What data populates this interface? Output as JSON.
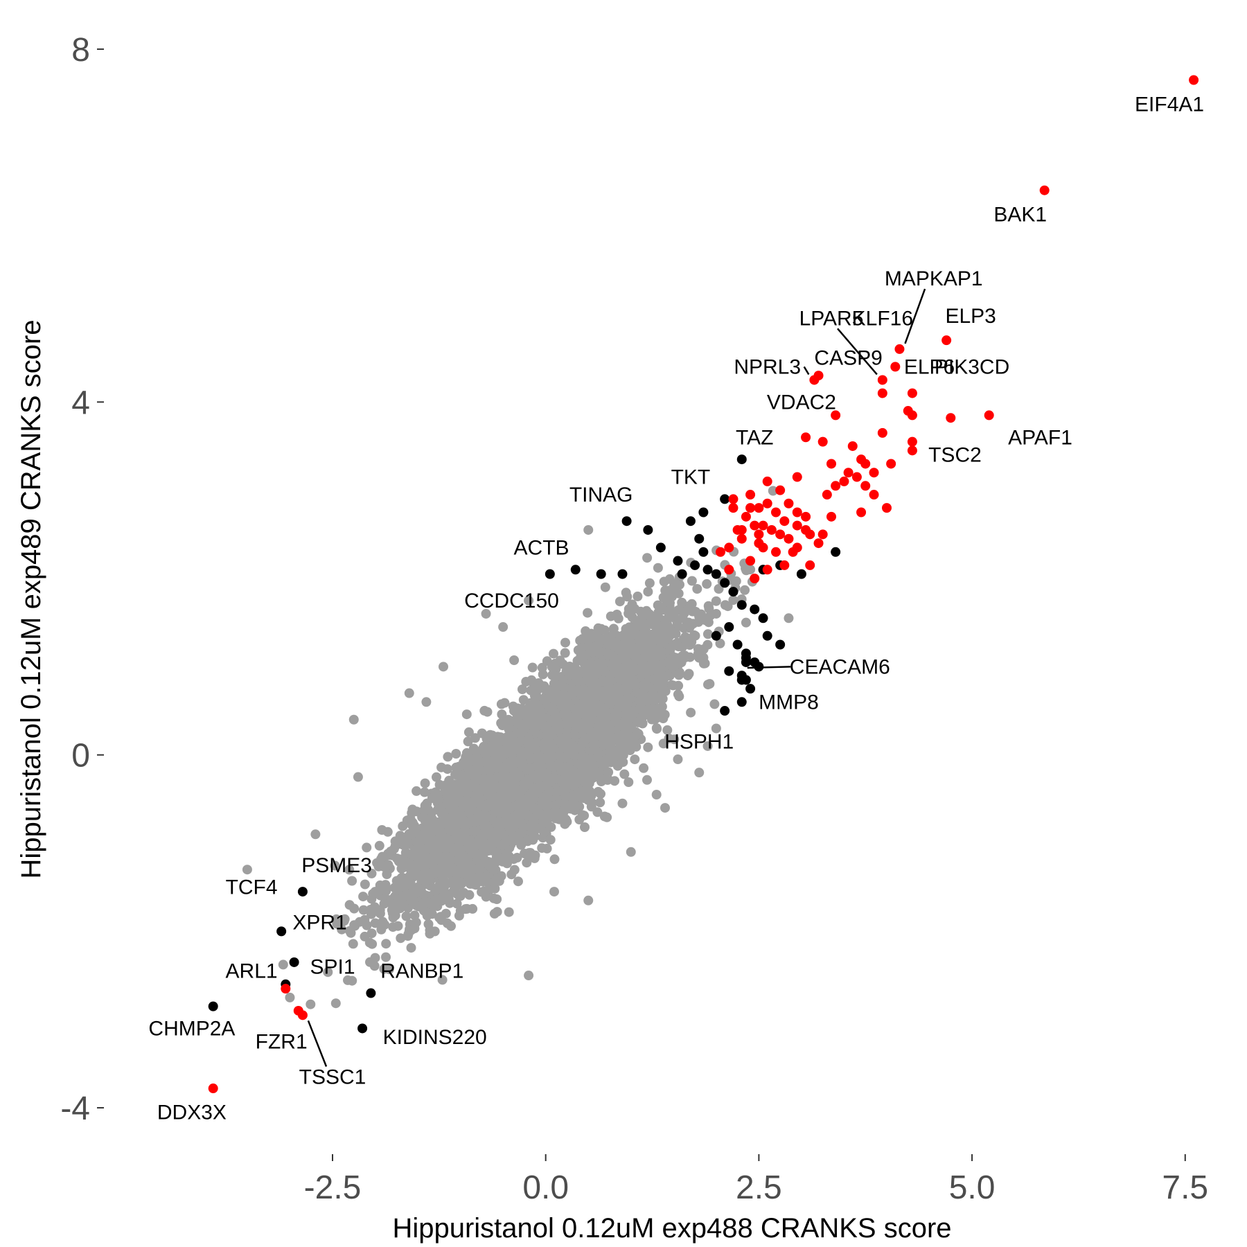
{
  "chart_data": {
    "type": "scatter",
    "xlabel": "Hippuristanol 0.12uM exp488 CRANKS score",
    "ylabel": "Hippuristanol 0.12uM exp489 CRANKS score",
    "xlim": [
      -5.1,
      7.9
    ],
    "ylim": [
      -4.4,
      8.4
    ],
    "grid": false,
    "x_ticks": [
      {
        "value": -2.5,
        "label": "-2.5"
      },
      {
        "value": 0,
        "label": "0.0"
      },
      {
        "value": 2.5,
        "label": "2.5"
      },
      {
        "value": 5,
        "label": "5.0"
      },
      {
        "value": 7.5,
        "label": "7.5"
      }
    ],
    "y_ticks": [
      {
        "value": -4,
        "label": "-4"
      },
      {
        "value": 0,
        "label": "0"
      },
      {
        "value": 4,
        "label": "4"
      },
      {
        "value": 8,
        "label": "8"
      }
    ],
    "colors": {
      "background_genes": "#9e9e9e",
      "significant_one": "#000000",
      "significant_both": "#ff0000"
    },
    "cloud": {
      "description_only": false,
      "count": 6500,
      "mean": [
        -0.05,
        -0.05
      ],
      "sd": [
        0.75,
        0.72
      ],
      "correlation": 0.86
    },
    "gray_outliers": [
      [
        -3.5,
        -1.3
      ],
      [
        -2.25,
        0.4
      ],
      [
        -2.2,
        -0.25
      ],
      [
        -2.7,
        -0.9
      ],
      [
        -2.3,
        -1.7
      ],
      [
        -2.4,
        -1.9
      ],
      [
        -2.0,
        -1.55
      ],
      [
        -1.6,
        0.7
      ],
      [
        -1.4,
        0.6
      ],
      [
        -1.2,
        1.0
      ],
      [
        -0.7,
        1.6
      ],
      [
        -0.5,
        1.45
      ],
      [
        -0.2,
        1.75
      ],
      [
        0.5,
        2.55
      ],
      [
        0.7,
        1.9
      ],
      [
        1.2,
        1.85
      ],
      [
        1.5,
        1.9
      ],
      [
        1.8,
        1.1
      ],
      [
        2.0,
        1.6
      ],
      [
        2.35,
        1.5
      ],
      [
        2.85,
        1.55
      ],
      [
        2.0,
        0.3
      ],
      [
        1.9,
        0.1
      ],
      [
        1.8,
        -0.2
      ],
      [
        1.3,
        -0.45
      ],
      [
        1.4,
        -0.6
      ],
      [
        1.0,
        -1.1
      ],
      [
        0.5,
        -1.65
      ],
      [
        0.1,
        -1.55
      ],
      [
        -0.2,
        -2.5
      ],
      [
        -0.6,
        -1.8
      ],
      [
        -1.0,
        -1.6
      ],
      [
        -1.3,
        -2.0
      ],
      [
        -1.6,
        -2.0
      ],
      [
        -3.0,
        -2.75
      ],
      [
        -2.0,
        -2.3
      ],
      [
        -1.5,
        -1.5
      ],
      [
        -2.1,
        -1.05
      ],
      [
        0.9,
        -0.55
      ],
      [
        1.55,
        -0.05
      ]
    ],
    "black_points": [
      [
        -3.9,
        -2.85
      ],
      [
        -3.1,
        -2.0
      ],
      [
        -2.85,
        -1.55
      ],
      [
        -2.95,
        -2.35
      ],
      [
        -3.05,
        -2.6
      ],
      [
        -2.15,
        -3.1
      ],
      [
        -2.05,
        -2.7
      ],
      [
        0.05,
        2.05
      ],
      [
        0.35,
        2.1
      ],
      [
        0.65,
        2.05
      ],
      [
        0.9,
        2.05
      ],
      [
        0.95,
        2.65
      ],
      [
        1.2,
        2.55
      ],
      [
        1.35,
        2.35
      ],
      [
        1.7,
        2.65
      ],
      [
        1.8,
        2.45
      ],
      [
        1.85,
        2.3
      ],
      [
        1.9,
        2.1
      ],
      [
        1.55,
        2.2
      ],
      [
        1.6,
        2.05
      ],
      [
        1.75,
        2.15
      ],
      [
        2.0,
        2.05
      ],
      [
        2.1,
        1.95
      ],
      [
        2.2,
        1.85
      ],
      [
        2.3,
        1.7
      ],
      [
        2.45,
        1.65
      ],
      [
        2.55,
        1.55
      ],
      [
        2.15,
        1.45
      ],
      [
        2.25,
        1.25
      ],
      [
        2.35,
        1.15
      ],
      [
        2.45,
        1.05
      ],
      [
        2.6,
        1.35
      ],
      [
        2.75,
        1.25
      ],
      [
        2.15,
        0.95
      ],
      [
        2.3,
        0.9
      ],
      [
        2.4,
        0.75
      ],
      [
        2.0,
        1.35
      ],
      [
        2.3,
        3.35
      ],
      [
        2.1,
        2.9
      ],
      [
        1.85,
        2.75
      ],
      [
        2.55,
        2.1
      ],
      [
        2.75,
        2.15
      ],
      [
        3.0,
        2.05
      ],
      [
        3.4,
        2.3
      ],
      [
        2.35,
        1.05
      ],
      [
        2.35,
        0.85
      ],
      [
        2.3,
        0.6
      ],
      [
        2.3,
        0.85
      ],
      [
        2.5,
        1.0
      ],
      [
        2.35,
        1.1
      ],
      [
        2.1,
        0.5
      ]
    ],
    "red_points": [
      [
        7.6,
        7.65
      ],
      [
        5.85,
        6.4
      ],
      [
        4.7,
        4.7
      ],
      [
        4.15,
        4.6
      ],
      [
        4.1,
        4.4
      ],
      [
        3.95,
        4.25
      ],
      [
        3.2,
        4.3
      ],
      [
        3.15,
        4.25
      ],
      [
        3.95,
        4.1
      ],
      [
        4.3,
        4.1
      ],
      [
        5.2,
        3.85
      ],
      [
        4.75,
        3.82
      ],
      [
        4.25,
        3.9
      ],
      [
        4.3,
        3.85
      ],
      [
        3.4,
        3.85
      ],
      [
        3.95,
        3.65
      ],
      [
        4.3,
        3.55
      ],
      [
        4.3,
        3.45
      ],
      [
        3.05,
        3.6
      ],
      [
        3.6,
        3.5
      ],
      [
        3.35,
        3.3
      ],
      [
        3.55,
        3.2
      ],
      [
        3.75,
        3.3
      ],
      [
        3.85,
        3.2
      ],
      [
        4.05,
        3.3
      ],
      [
        3.5,
        3.1
      ],
      [
        3.65,
        3.15
      ],
      [
        3.75,
        3.05
      ],
      [
        3.4,
        3.05
      ],
      [
        3.3,
        2.95
      ],
      [
        4.0,
        2.8
      ],
      [
        3.85,
        2.95
      ],
      [
        3.7,
        2.75
      ],
      [
        3.35,
        2.7
      ],
      [
        3.1,
        2.5
      ],
      [
        2.95,
        2.6
      ],
      [
        2.85,
        2.85
      ],
      [
        2.75,
        3.0
      ],
      [
        2.6,
        3.1
      ],
      [
        2.4,
        2.95
      ],
      [
        2.5,
        2.8
      ],
      [
        2.7,
        2.75
      ],
      [
        2.8,
        2.65
      ],
      [
        2.95,
        2.75
      ],
      [
        3.05,
        2.7
      ],
      [
        2.55,
        2.6
      ],
      [
        2.65,
        2.55
      ],
      [
        2.5,
        2.5
      ],
      [
        2.35,
        2.7
      ],
      [
        2.25,
        2.55
      ],
      [
        2.15,
        2.35
      ],
      [
        2.05,
        2.3
      ],
      [
        2.2,
        2.9
      ],
      [
        2.3,
        2.45
      ],
      [
        2.4,
        2.2
      ],
      [
        2.55,
        2.35
      ],
      [
        2.7,
        2.3
      ],
      [
        2.85,
        2.45
      ],
      [
        2.95,
        2.35
      ],
      [
        2.8,
        2.15
      ],
      [
        2.6,
        2.1
      ],
      [
        2.45,
        2.0
      ],
      [
        3.2,
        2.4
      ],
      [
        3.1,
        2.15
      ],
      [
        3.25,
        2.5
      ],
      [
        3.05,
        2.55
      ],
      [
        2.15,
        2.1
      ],
      [
        2.5,
        2.4
      ],
      [
        2.75,
        2.5
      ],
      [
        2.9,
        2.3
      ],
      [
        2.45,
        2.6
      ],
      [
        2.6,
        2.85
      ],
      [
        2.3,
        2.55
      ],
      [
        2.95,
        3.15
      ],
      [
        3.7,
        3.35
      ],
      [
        3.25,
        3.55
      ],
      [
        2.2,
        2.8
      ],
      [
        2.4,
        2.8
      ],
      [
        -3.05,
        -2.65
      ],
      [
        -2.9,
        -2.9
      ],
      [
        -2.85,
        -2.95
      ],
      [
        -3.9,
        -3.78
      ]
    ],
    "labels": [
      {
        "text": "EIF4A1",
        "x": 7.6,
        "y": 7.65,
        "pos": "below"
      },
      {
        "text": "BAK1",
        "x": 5.85,
        "y": 6.4,
        "pos": "below"
      },
      {
        "text": "MAPKAP1",
        "x": 4.15,
        "y": 4.6,
        "pos": "leader",
        "lx": 4.55,
        "ly": 5.4
      },
      {
        "text": "ELP3",
        "x": 4.7,
        "y": 4.7,
        "pos": "above"
      },
      {
        "text": "LPAR5",
        "x": 3.95,
        "y": 4.25,
        "pos": "leader",
        "lx": 3.35,
        "ly": 4.95
      },
      {
        "text": "KLF16",
        "x": 4.15,
        "y": 4.6,
        "pos": "free",
        "lx": 3.95,
        "ly": 4.95
      },
      {
        "text": "CASP9",
        "x": 3.95,
        "y": 4.25,
        "pos": "free",
        "lx": 3.55,
        "ly": 4.5
      },
      {
        "text": "ELP6",
        "x": 4.1,
        "y": 4.4,
        "pos": "free",
        "lx": 4.5,
        "ly": 4.4
      },
      {
        "text": "NPRL3",
        "x": 3.15,
        "y": 4.25,
        "pos": "leader",
        "lx": 2.6,
        "ly": 4.4
      },
      {
        "text": "PIK3CD",
        "x": 4.3,
        "y": 4.1,
        "pos": "free",
        "lx": 5.0,
        "ly": 4.4
      },
      {
        "text": "VDAC2",
        "x": 3.4,
        "y": 3.85,
        "pos": "free",
        "lx": 3.0,
        "ly": 4.0
      },
      {
        "text": "APAF1",
        "x": 5.2,
        "y": 3.85,
        "pos": "free",
        "lx": 5.8,
        "ly": 3.6
      },
      {
        "text": "TSC2",
        "x": 4.3,
        "y": 3.55,
        "pos": "free",
        "lx": 4.8,
        "ly": 3.4
      },
      {
        "text": "TAZ",
        "x": 2.3,
        "y": 3.35,
        "pos": "free",
        "lx": 2.45,
        "ly": 3.6
      },
      {
        "text": "TKT",
        "x": 2.1,
        "y": 2.9,
        "pos": "free",
        "lx": 1.7,
        "ly": 3.15
      },
      {
        "text": "TINAG",
        "x": 0.95,
        "y": 2.65,
        "pos": "free",
        "lx": 0.65,
        "ly": 2.95
      },
      {
        "text": "ACTB",
        "x": 0.05,
        "y": 2.05,
        "pos": "free",
        "lx": -0.05,
        "ly": 2.35
      },
      {
        "text": "CCDC150",
        "x": -0.5,
        "y": 1.45,
        "pos": "free",
        "lx": -0.4,
        "ly": 1.75
      },
      {
        "text": "CEACAM6",
        "x": 2.3,
        "y": 1.05,
        "pos": "leader",
        "lx": 3.45,
        "ly": 1.0
      },
      {
        "text": "MMP8",
        "x": 2.3,
        "y": 0.85,
        "pos": "free",
        "lx": 2.85,
        "ly": 0.6
      },
      {
        "text": "HSPH1",
        "x": 2.1,
        "y": 0.5,
        "pos": "free",
        "lx": 1.8,
        "ly": 0.15
      },
      {
        "text": "PSME3",
        "x": -2.7,
        "y": -1.55,
        "pos": "free",
        "lx": -2.45,
        "ly": -1.25
      },
      {
        "text": "TCF4",
        "x": -3.1,
        "y": -2.0,
        "pos": "free",
        "lx": -3.45,
        "ly": -1.5
      },
      {
        "text": "XPR1",
        "x": -2.95,
        "y": -2.35,
        "pos": "free",
        "lx": -2.65,
        "ly": -1.9
      },
      {
        "text": "ARL1",
        "x": -3.05,
        "y": -2.6,
        "pos": "free",
        "lx": -3.45,
        "ly": -2.45
      },
      {
        "text": "SPI1",
        "x": -2.95,
        "y": -2.35,
        "pos": "free",
        "lx": -2.5,
        "ly": -2.4
      },
      {
        "text": "RANBP1",
        "x": -2.05,
        "y": -2.7,
        "pos": "free",
        "lx": -1.45,
        "ly": -2.45
      },
      {
        "text": "CHMP2A",
        "x": -3.9,
        "y": -2.85,
        "pos": "free",
        "lx": -4.15,
        "ly": -3.1
      },
      {
        "text": "FZR1",
        "x": -3.05,
        "y": -3.0,
        "pos": "free",
        "lx": -3.1,
        "ly": -3.25
      },
      {
        "text": "KIDINS220",
        "x": -2.15,
        "y": -3.1,
        "pos": "free",
        "lx": -1.3,
        "ly": -3.2
      },
      {
        "text": "TSSC1",
        "x": -2.85,
        "y": -2.95,
        "pos": "leader",
        "lx": -2.5,
        "ly": -3.65
      },
      {
        "text": "DDX3X",
        "x": -3.9,
        "y": -3.78,
        "pos": "free",
        "lx": -4.15,
        "ly": -4.05
      }
    ]
  }
}
